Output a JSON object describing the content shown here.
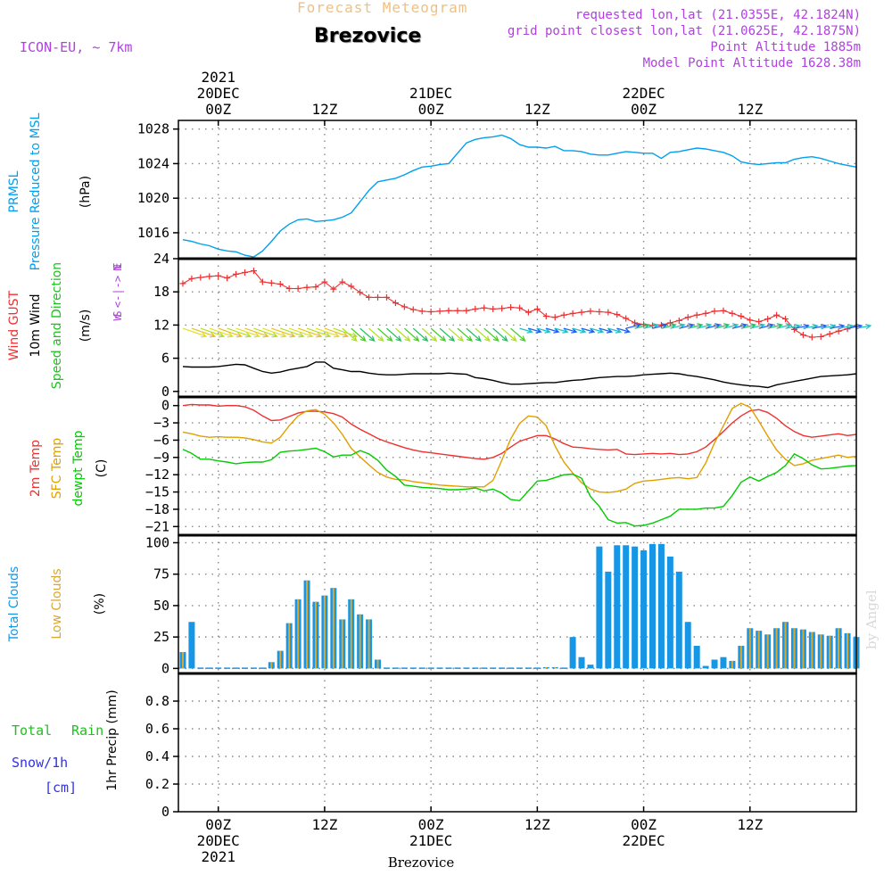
{
  "header": {
    "title": "Forecast Meteogram",
    "location": "Brezovice",
    "model": "ICON-EU, ~ 7km",
    "requested": "requested lon,lat (21.0355E, 42.1824N)",
    "grid_point": "grid point closest lon,lat (21.0625E, 42.1875N)",
    "point_altitude": "Point Altitude 1885m",
    "model_altitude": "Model Point Altitude 1628.38m",
    "footer_location": "Brezovice",
    "credit": "by Angel"
  },
  "colors": {
    "title": "#f0c080",
    "header_info": "#b040e0",
    "pressure": "#00a0ee",
    "gust": "#ee3030",
    "wind": "#000000",
    "t2m": "#ee3030",
    "tsfc": "#e0a000",
    "dewpt": "#00cc00",
    "total_clouds": "#1896e6",
    "low_clouds": "#d8a830",
    "rain": "#20c020",
    "snow": "#3030ee",
    "credit": "#d8d8d8"
  },
  "chart_data": [
    {
      "type": "line",
      "panel": "pressure",
      "ylabels": [
        "PRMSL",
        "Pressure Reduced to MSL",
        "(hPa)"
      ],
      "ylim": [
        1013,
        1029
      ],
      "yticks": [
        1016,
        1020,
        1024,
        1028
      ],
      "x_hours": [
        -4,
        -3,
        -2,
        -1,
        0,
        1,
        2,
        3,
        4,
        5,
        6,
        7,
        8,
        9,
        10,
        11,
        12,
        13,
        14,
        15,
        16,
        17,
        18,
        19,
        20,
        21,
        22,
        23,
        24,
        25,
        26,
        27,
        28,
        29,
        30,
        31,
        32,
        33,
        34,
        35,
        36,
        37,
        38,
        39,
        40,
        41,
        42,
        43,
        44,
        45,
        46,
        47,
        48,
        49,
        50,
        51,
        52,
        53,
        54,
        55,
        56,
        57,
        58,
        59,
        60,
        61,
        62,
        63,
        64,
        65,
        66,
        67,
        68,
        69,
        70,
        71,
        72
      ],
      "series": [
        {
          "name": "PRMSL",
          "color": "pressure",
          "values": [
            1015.2,
            1015.0,
            1014.7,
            1014.5,
            1014.1,
            1013.9,
            1013.8,
            1013.4,
            1013.2,
            1013.9,
            1015.0,
            1016.2,
            1017.0,
            1017.5,
            1017.6,
            1017.3,
            1017.4,
            1017.5,
            1017.8,
            1018.3,
            1019.6,
            1020.9,
            1021.9,
            1022.1,
            1022.3,
            1022.7,
            1023.2,
            1023.6,
            1023.7,
            1023.9,
            1024.0,
            1025.2,
            1026.4,
            1026.8,
            1027.0,
            1027.1,
            1027.3,
            1026.9,
            1026.2,
            1025.9,
            1025.9,
            1025.8,
            1026.0,
            1025.5,
            1025.5,
            1025.4,
            1025.1,
            1025.0,
            1025.0,
            1025.2,
            1025.4,
            1025.3,
            1025.2,
            1025.2,
            1024.6,
            1025.3,
            1025.4,
            1025.6,
            1025.8,
            1025.7,
            1025.5,
            1025.3,
            1024.9,
            1024.2,
            1024.0,
            1023.9,
            1024.0,
            1024.1,
            1024.1,
            1024.5,
            1024.7,
            1024.8,
            1024.6,
            1024.3,
            1024.0,
            1023.8,
            1023.6
          ]
        }
      ]
    },
    {
      "type": "line",
      "panel": "wind",
      "ylabels": [
        "Wind GUST",
        "10m Wind",
        "Speed and Direction",
        "(m/s)"
      ],
      "ylim": [
        -1,
        24
      ],
      "yticks": [
        0,
        6,
        12,
        18,
        24
      ],
      "compass": [
        "N",
        "W <-|-> E",
        "S"
      ],
      "series": [
        {
          "name": "Wind GUST",
          "color": "gust",
          "marker": "+",
          "values": [
            19.5,
            20.4,
            20.6,
            20.8,
            20.9,
            20.5,
            21.2,
            21.5,
            21.8,
            19.8,
            19.6,
            19.4,
            18.6,
            18.6,
            18.8,
            18.9,
            19.8,
            18.5,
            19.8,
            19.0,
            17.9,
            17.0,
            17.0,
            17.0,
            16.0,
            15.3,
            14.8,
            14.5,
            14.4,
            14.5,
            14.6,
            14.6,
            14.6,
            14.9,
            15.1,
            14.9,
            15.0,
            15.2,
            15.1,
            14.3,
            14.9,
            13.6,
            13.4,
            13.8,
            14.1,
            14.3,
            14.5,
            14.4,
            14.3,
            13.9,
            13.2,
            12.4,
            12.1,
            11.9,
            12.0,
            12.4,
            12.8,
            13.4,
            13.8,
            14.1,
            14.5,
            14.6,
            14.1,
            13.6,
            12.9,
            12.6,
            13.1,
            13.8,
            13.1,
            11.2,
            10.2,
            9.8,
            9.9,
            10.4,
            10.9,
            11.3,
            11.8
          ]
        },
        {
          "name": "10m Wind",
          "color": "wind",
          "values": [
            4.5,
            4.4,
            4.4,
            4.4,
            4.5,
            4.7,
            4.9,
            4.8,
            4.2,
            3.6,
            3.3,
            3.5,
            3.9,
            4.2,
            4.5,
            5.3,
            5.3,
            4.2,
            3.9,
            3.6,
            3.6,
            3.3,
            3.1,
            3.0,
            3.0,
            3.1,
            3.2,
            3.2,
            3.2,
            3.2,
            3.3,
            3.2,
            3.1,
            2.5,
            2.3,
            2.0,
            1.6,
            1.3,
            1.3,
            1.4,
            1.5,
            1.6,
            1.6,
            1.8,
            2.0,
            2.1,
            2.3,
            2.5,
            2.6,
            2.7,
            2.7,
            2.8,
            3.0,
            3.1,
            3.2,
            3.3,
            3.2,
            2.9,
            2.7,
            2.4,
            2.1,
            1.7,
            1.4,
            1.2,
            1.0,
            0.9,
            0.7,
            1.2,
            1.5,
            1.8,
            2.1,
            2.4,
            2.7,
            2.8,
            2.9,
            3.0,
            3.2
          ]
        }
      ]
    },
    {
      "type": "line",
      "panel": "temperature",
      "ylabels": [
        "2m Temp",
        "SFC Temp",
        "dewpt Temp",
        "(C)"
      ],
      "ylim": [
        -22.5,
        1.5
      ],
      "yticks": [
        0,
        -3,
        -6,
        -9,
        -12,
        -15,
        -18,
        -21
      ],
      "ytick_labels": [
        "0",
        "−3",
        "−6",
        "−9",
        "−12",
        "−15",
        "−18",
        "−21"
      ],
      "series": [
        {
          "name": "2m Temp",
          "color": "t2m",
          "values": [
            0.0,
            0.2,
            0.1,
            0.1,
            -0.1,
            0.0,
            0.0,
            -0.2,
            -0.8,
            -1.8,
            -2.6,
            -2.5,
            -1.9,
            -1.3,
            -1.0,
            -1.0,
            -1.1,
            -1.4,
            -2.0,
            -3.2,
            -4.1,
            -4.9,
            -5.7,
            -6.3,
            -6.8,
            -7.3,
            -7.7,
            -8.0,
            -8.2,
            -8.4,
            -8.6,
            -8.8,
            -9.0,
            -9.2,
            -9.3,
            -9.0,
            -8.3,
            -7.2,
            -6.2,
            -5.7,
            -5.2,
            -5.2,
            -5.8,
            -6.6,
            -7.2,
            -7.3,
            -7.5,
            -7.6,
            -7.7,
            -7.6,
            -8.4,
            -8.5,
            -8.4,
            -8.3,
            -8.4,
            -8.3,
            -8.5,
            -8.4,
            -8.0,
            -7.2,
            -5.9,
            -4.5,
            -3.0,
            -1.8,
            -0.9,
            -0.7,
            -1.2,
            -2.2,
            -3.5,
            -4.5,
            -5.2,
            -5.5,
            -5.3,
            -5.1,
            -4.9,
            -5.2,
            -5.0
          ]
        },
        {
          "name": "SFC Temp",
          "color": "tsfc",
          "values": [
            -4.6,
            -4.9,
            -5.3,
            -5.5,
            -5.4,
            -5.5,
            -5.5,
            -5.6,
            -5.9,
            -6.3,
            -6.5,
            -5.5,
            -3.5,
            -1.8,
            -0.9,
            -0.7,
            -1.5,
            -3.0,
            -5.0,
            -7.4,
            -8.9,
            -10.3,
            -11.6,
            -12.4,
            -12.8,
            -12.9,
            -13.2,
            -13.4,
            -13.6,
            -13.8,
            -13.9,
            -14.0,
            -14.1,
            -14.1,
            -14.1,
            -13.0,
            -9.5,
            -5.8,
            -3.1,
            -1.8,
            -2.0,
            -3.5,
            -7.0,
            -9.8,
            -11.7,
            -13.4,
            -14.5,
            -15.0,
            -15.1,
            -14.9,
            -14.5,
            -13.5,
            -13.1,
            -13.0,
            -12.8,
            -12.6,
            -12.5,
            -12.7,
            -12.5,
            -10.0,
            -6.5,
            -3.5,
            -0.5,
            0.4,
            -0.3,
            -2.7,
            -5.3,
            -7.7,
            -9.3,
            -10.4,
            -10.1,
            -9.5,
            -9.2,
            -8.9,
            -8.6,
            -9.0,
            -8.8
          ]
        },
        {
          "name": "dewpt Temp",
          "color": "dewpt",
          "values": [
            -7.6,
            -8.3,
            -9.3,
            -9.3,
            -9.6,
            -9.8,
            -10.1,
            -9.9,
            -9.8,
            -9.8,
            -9.4,
            -8.1,
            -7.9,
            -7.8,
            -7.6,
            -7.4,
            -8.0,
            -8.9,
            -8.6,
            -8.6,
            -7.8,
            -8.4,
            -9.5,
            -11.2,
            -12.3,
            -13.8,
            -14.0,
            -14.2,
            -14.3,
            -14.4,
            -14.6,
            -14.6,
            -14.5,
            -14.3,
            -14.8,
            -14.5,
            -15.2,
            -16.3,
            -16.5,
            -14.8,
            -13.1,
            -13.0,
            -12.5,
            -12.0,
            -11.9,
            -12.6,
            -15.8,
            -17.5,
            -19.8,
            -20.4,
            -20.3,
            -20.9,
            -20.8,
            -20.4,
            -19.8,
            -19.2,
            -18.0,
            -18.0,
            -18.0,
            -17.8,
            -17.8,
            -17.5,
            -15.6,
            -13.3,
            -12.4,
            -13.1,
            -12.3,
            -11.6,
            -10.4,
            -8.4,
            -9.2,
            -10.3,
            -11.0,
            -10.9,
            -10.7,
            -10.5,
            -10.4
          ]
        }
      ]
    },
    {
      "type": "bar",
      "panel": "clouds",
      "ylabels": [
        "Total Clouds",
        "Low Clouds",
        "(%)"
      ],
      "ylim": [
        -4,
        106
      ],
      "yticks": [
        0,
        25,
        50,
        75,
        100
      ],
      "series": [
        {
          "name": "Total Clouds",
          "color": "total_clouds",
          "values": [
            13,
            37,
            0,
            0,
            0,
            0,
            0,
            0,
            0,
            0,
            5,
            14,
            36,
            55,
            70,
            53,
            58,
            64,
            39,
            55,
            43,
            39,
            7,
            0,
            0,
            0,
            0,
            0,
            0,
            0,
            0,
            0,
            0,
            0,
            0,
            0,
            0,
            0,
            0,
            0,
            0,
            1,
            1,
            0,
            25,
            9,
            3,
            97,
            77,
            98,
            98,
            97,
            94,
            99,
            99,
            89,
            77,
            37,
            18,
            2,
            7,
            9,
            6,
            18,
            32,
            30,
            27,
            32,
            37,
            32,
            31,
            29,
            27,
            26,
            32,
            28,
            25
          ]
        },
        {
          "name": "Low Clouds",
          "color": "low_clouds",
          "values": [
            13,
            0,
            0,
            0,
            0,
            0,
            0,
            0,
            0,
            0,
            5,
            14,
            36,
            55,
            70,
            53,
            58,
            64,
            39,
            55,
            43,
            39,
            7,
            0,
            0,
            0,
            0,
            0,
            0,
            0,
            0,
            0,
            0,
            0,
            0,
            0,
            0,
            0,
            0,
            0,
            0,
            1,
            1,
            0,
            0,
            0,
            0,
            0,
            0,
            0,
            0,
            0,
            0,
            0,
            0,
            0,
            0,
            0,
            0,
            0,
            0,
            0,
            6,
            18,
            32,
            30,
            27,
            32,
            37,
            32,
            31,
            29,
            27,
            26,
            32,
            28,
            25
          ]
        }
      ]
    },
    {
      "type": "bar",
      "panel": "precip",
      "ylabels": [
        "1hr Precip (mm)"
      ],
      "legend": [
        "Total",
        "Rain",
        "Snow/1h",
        "[cm]"
      ],
      "ylim": [
        0,
        1.0
      ],
      "yticks": [
        0,
        0.2,
        0.4,
        0.6,
        0.8
      ],
      "ytick_labels": [
        "0",
        "0.2",
        "0.4",
        "0.6",
        "0.8"
      ],
      "series": [
        {
          "name": "Total Rain",
          "color": "rain",
          "values": []
        },
        {
          "name": "Snow/1h",
          "color": "snow",
          "values": []
        }
      ]
    }
  ],
  "x_axis": {
    "hour_min": -4.5,
    "hour_max": 72,
    "top_ticks": [
      {
        "hour": 0,
        "lines": [
          "2021",
          "20DEC",
          "00Z"
        ]
      },
      {
        "hour": 12,
        "lines": [
          "12Z"
        ]
      },
      {
        "hour": 24,
        "lines": [
          "21DEC",
          "00Z"
        ]
      },
      {
        "hour": 36,
        "lines": [
          "12Z"
        ]
      },
      {
        "hour": 48,
        "lines": [
          "22DEC",
          "00Z"
        ]
      },
      {
        "hour": 60,
        "lines": [
          "12Z"
        ]
      }
    ],
    "bottom_ticks": [
      {
        "hour": 0,
        "lines": [
          "00Z",
          "20DEC",
          "2021"
        ]
      },
      {
        "hour": 12,
        "lines": [
          "12Z"
        ]
      },
      {
        "hour": 24,
        "lines": [
          "00Z",
          "21DEC"
        ]
      },
      {
        "hour": 36,
        "lines": [
          "12Z"
        ]
      },
      {
        "hour": 48,
        "lines": [
          "00Z",
          "22DEC"
        ]
      },
      {
        "hour": 60,
        "lines": [
          "12Z"
        ]
      }
    ]
  }
}
